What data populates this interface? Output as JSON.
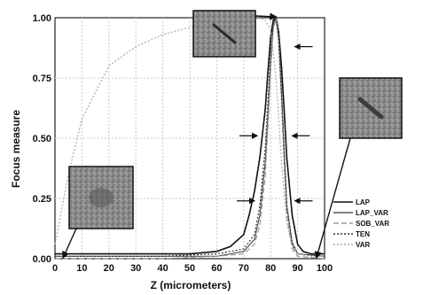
{
  "chart_data": {
    "type": "line",
    "title": "",
    "xlabel": "Z (micrometers)",
    "ylabel": "Focus measure",
    "xlim": [
      0,
      100
    ],
    "ylim": [
      0,
      1
    ],
    "xticks": [
      "0",
      "10",
      "20",
      "30",
      "40",
      "50",
      "60",
      "70",
      "80",
      "90",
      "100"
    ],
    "yticks": [
      "0.00",
      "0.25",
      "0.50",
      "0.75",
      "1.00"
    ],
    "grid": true,
    "legend_position": "bottom-right",
    "series": [
      {
        "name": "LAP",
        "color": "#111111",
        "style": "solid",
        "x": [
          0,
          10,
          20,
          30,
          40,
          50,
          60,
          65,
          70,
          72,
          74,
          76,
          78,
          79,
          80,
          81,
          82,
          83,
          84,
          85,
          86,
          88,
          90,
          92,
          95,
          100
        ],
        "y": [
          0.02,
          0.02,
          0.02,
          0.02,
          0.02,
          0.02,
          0.03,
          0.05,
          0.1,
          0.18,
          0.28,
          0.42,
          0.62,
          0.78,
          0.92,
          0.99,
          1.0,
          0.94,
          0.8,
          0.62,
          0.42,
          0.18,
          0.06,
          0.03,
          0.02,
          0.02
        ]
      },
      {
        "name": "LAP_VAR",
        "color": "#555555",
        "style": "solid",
        "x": [
          0,
          20,
          40,
          60,
          70,
          74,
          76,
          78,
          79,
          80,
          81,
          82,
          83,
          84,
          85,
          86,
          88,
          90,
          100
        ],
        "y": [
          0.01,
          0.01,
          0.01,
          0.01,
          0.03,
          0.08,
          0.18,
          0.4,
          0.6,
          0.82,
          0.97,
          1.0,
          0.92,
          0.7,
          0.45,
          0.22,
          0.06,
          0.02,
          0.01
        ]
      },
      {
        "name": "SOB_VAR",
        "color": "#999999",
        "style": "dashed",
        "x": [
          0,
          20,
          40,
          60,
          70,
          74,
          76,
          78,
          79,
          80,
          81,
          82,
          83,
          84,
          85,
          86,
          88,
          90,
          100
        ],
        "y": [
          0.0,
          0.0,
          0.0,
          0.01,
          0.02,
          0.06,
          0.14,
          0.34,
          0.55,
          0.78,
          0.95,
          1.0,
          0.9,
          0.66,
          0.4,
          0.18,
          0.04,
          0.01,
          0.0
        ]
      },
      {
        "name": "TEN",
        "color": "#333333",
        "style": "dotted",
        "x": [
          0,
          20,
          40,
          60,
          70,
          74,
          76,
          78,
          79,
          80,
          81,
          82,
          83,
          84,
          85,
          86,
          88,
          90,
          100
        ],
        "y": [
          0.01,
          0.01,
          0.01,
          0.02,
          0.04,
          0.1,
          0.22,
          0.46,
          0.66,
          0.86,
          0.98,
          1.0,
          0.9,
          0.68,
          0.44,
          0.22,
          0.07,
          0.02,
          0.01
        ]
      },
      {
        "name": "VAR",
        "color": "#aaaaaa",
        "style": "dotted",
        "x": [
          0,
          5,
          10,
          20,
          30,
          40,
          50,
          60,
          70,
          75,
          78,
          80,
          82,
          84,
          86,
          88,
          90,
          95,
          100
        ],
        "y": [
          0.06,
          0.35,
          0.58,
          0.8,
          0.88,
          0.93,
          0.96,
          0.98,
          0.99,
          1.0,
          0.99,
          0.95,
          0.75,
          0.4,
          0.15,
          0.05,
          0.02,
          0.01,
          0.01
        ]
      }
    ],
    "width_markers": [
      {
        "y": 0.88,
        "x_left": 74,
        "x_right": 89
      },
      {
        "y": 0.51,
        "x_left": 75,
        "x_right": 88
      },
      {
        "y": 0.24,
        "x_left": 74,
        "x_right": 89
      }
    ],
    "insets": [
      {
        "name": "in-focus-image",
        "target_x": 82,
        "target_y": 1.0
      },
      {
        "name": "defocus-near-image",
        "target_x": 3,
        "target_y": 0.0
      },
      {
        "name": "defocus-far-image",
        "target_x": 97,
        "target_y": 0.0
      }
    ]
  }
}
